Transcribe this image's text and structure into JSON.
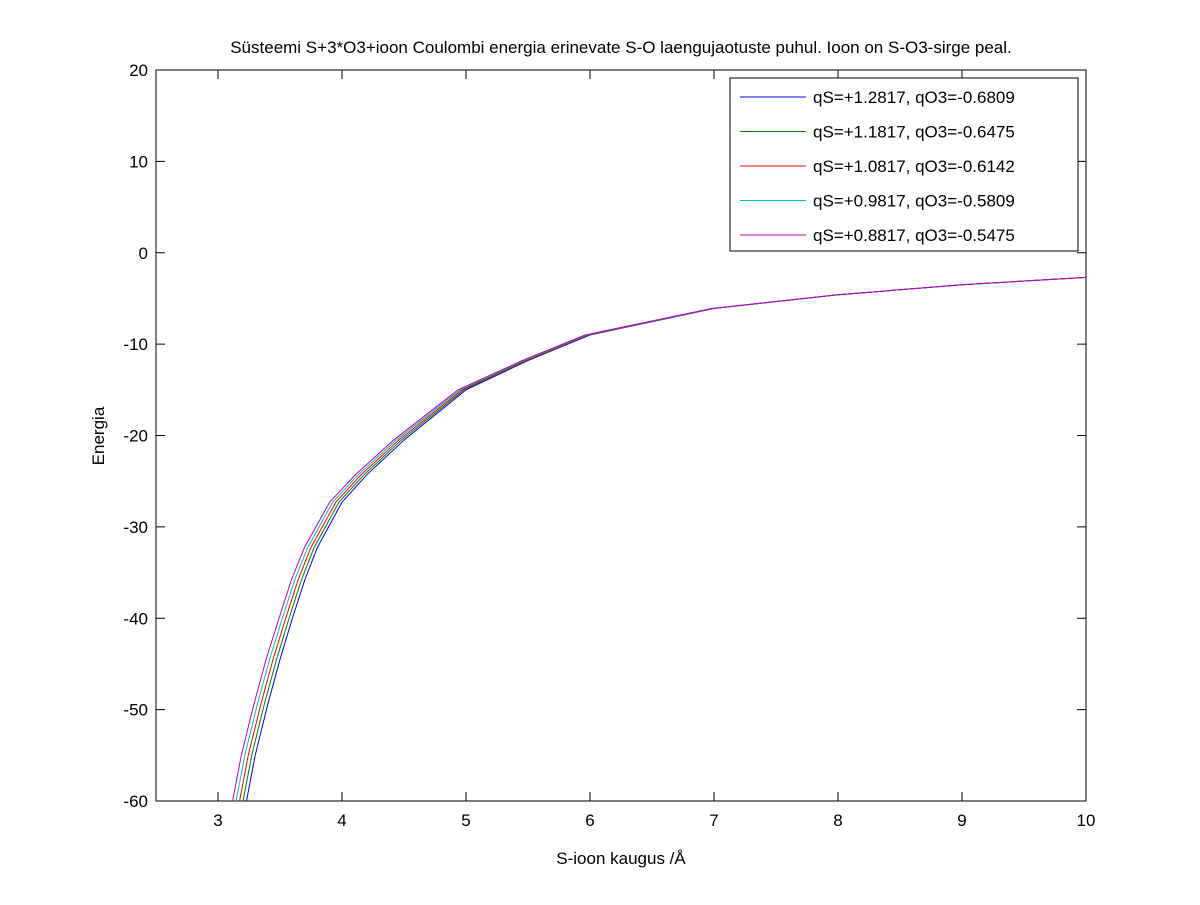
{
  "chart_data": {
    "type": "line",
    "title": "Süsteemi S+3*O3+ioon Coulombi energia erinevate S-O laengujaotuste puhul. Ioon on S-O3-sirge peal.",
    "xlabel": "S-ioon kaugus /Å",
    "ylabel": "Energia",
    "xlim": [
      2.5,
      10
    ],
    "ylim": [
      -60,
      20
    ],
    "xticks": [
      "3",
      "4",
      "5",
      "6",
      "7",
      "8",
      "9",
      "10"
    ],
    "xtick_values": [
      3,
      4,
      5,
      6,
      7,
      8,
      9,
      10
    ],
    "yticks": [
      "20",
      "10",
      "0",
      "-10",
      "-20",
      "-30",
      "-40",
      "-50",
      "-60"
    ],
    "ytick_values": [
      20,
      10,
      0,
      -10,
      -20,
      -30,
      -40,
      -50,
      -60
    ],
    "grid": false,
    "legend_placement": "top-right",
    "y_values": [
      -60,
      -55,
      -49.5,
      -44.5,
      -40,
      -35.8,
      -32.3,
      -27.3,
      -24.3,
      -20.5,
      -15,
      -11.8,
      -9,
      -6.1,
      -4.6,
      -3.5,
      -2.7
    ],
    "series": [
      {
        "name": "qS=+1.2817, qO3=-0.6809",
        "color": "#0000ff",
        "x": [
          3.23,
          3.3,
          3.4,
          3.5,
          3.6,
          3.7,
          3.8,
          4.0,
          4.2,
          4.5,
          5,
          5.5,
          6,
          7,
          8,
          9,
          10
        ]
      },
      {
        "name": "qS=+1.1817, qO3=-0.6475",
        "color": "#008000",
        "x": [
          3.202,
          3.272,
          3.372,
          3.472,
          3.573,
          3.673,
          3.774,
          3.975,
          4.177,
          4.479,
          4.984,
          5.488,
          5.99,
          6.995,
          8,
          9,
          10
        ]
      },
      {
        "name": "qS=+1.0817, qO3=-0.6142",
        "color": "#ff0000",
        "x": [
          3.174,
          3.244,
          3.344,
          3.444,
          3.546,
          3.646,
          3.748,
          3.95,
          4.154,
          4.458,
          4.968,
          5.476,
          5.98,
          6.99,
          8,
          9,
          10
        ]
      },
      {
        "name": "qS=+0.9817, qO3=-0.5809",
        "color": "#00bfbf",
        "x": [
          3.146,
          3.216,
          3.316,
          3.416,
          3.519,
          3.619,
          3.722,
          3.925,
          4.131,
          4.437,
          4.952,
          5.464,
          5.97,
          6.985,
          8,
          9,
          10
        ]
      },
      {
        "name": "qS=+0.8817, qO3=-0.5475",
        "color": "#bf00bf",
        "x": [
          3.118,
          3.188,
          3.288,
          3.388,
          3.492,
          3.592,
          3.696,
          3.9,
          4.108,
          4.416,
          4.936,
          5.452,
          5.96,
          6.98,
          8,
          9,
          10
        ]
      }
    ]
  }
}
